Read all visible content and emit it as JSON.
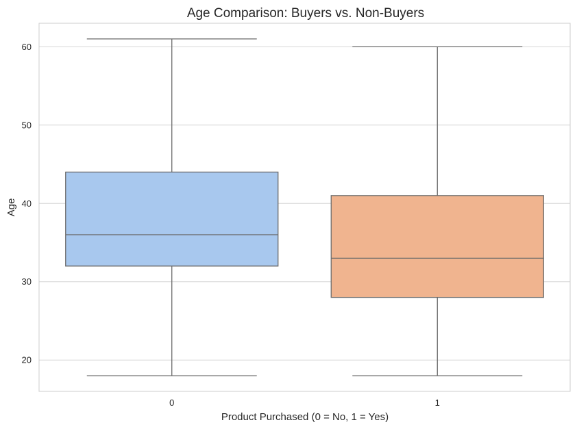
{
  "chart_data": {
    "type": "box",
    "title": "Age Comparison: Buyers vs. Non-Buyers",
    "xlabel": "Product Purchased (0 = No, 1 = Yes)",
    "ylabel": "Age",
    "ylim": [
      16,
      63
    ],
    "yticks": [
      20,
      30,
      40,
      50,
      60
    ],
    "grid": "horizontal",
    "categories": [
      "0",
      "1"
    ],
    "boxes": [
      {
        "category": "0",
        "min": 18,
        "q1": 32,
        "median": 36,
        "q3": 44,
        "max": 61,
        "color": "#a8c8ee"
      },
      {
        "category": "1",
        "min": 18,
        "q1": 28,
        "median": 33,
        "q3": 41,
        "max": 60,
        "color": "#f0b48f"
      }
    ],
    "colors": {
      "grid": "#d6d6d6",
      "frame": "#cccccc",
      "box_line": "#6a6a6a",
      "text": "#262626"
    }
  }
}
